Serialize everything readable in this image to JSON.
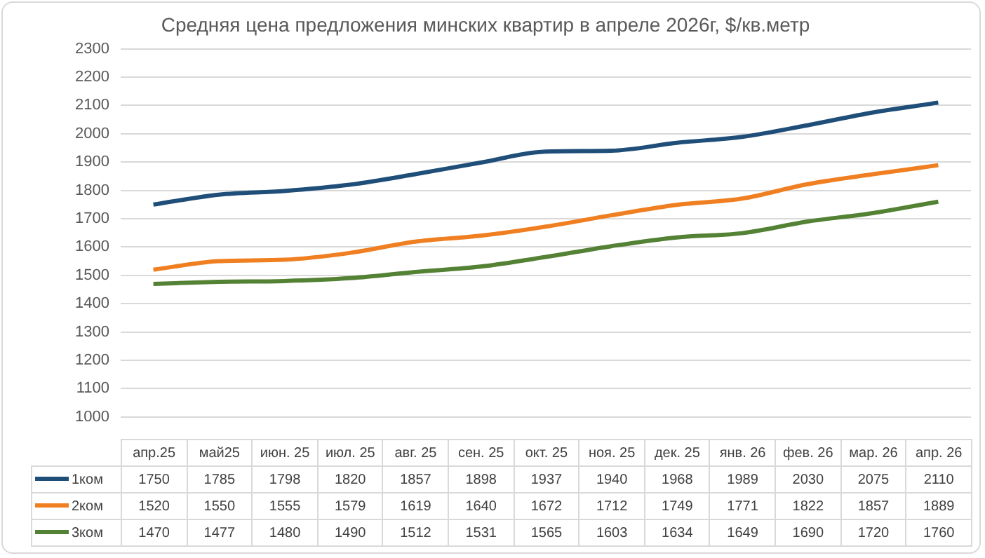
{
  "chart_data": {
    "type": "line",
    "title": "Средняя цена предложения минских квартир в апреле 2026г, $/кв.метр",
    "categories": [
      "апр.25",
      "май25",
      "июн. 25",
      "июл. 25",
      "авг. 25",
      "сен. 25",
      "окт. 25",
      "ноя. 25",
      "дек. 25",
      "янв. 26",
      "фев. 26",
      "мар. 26",
      "апр. 26"
    ],
    "series": [
      {
        "name": "1ком",
        "color": "#1f4e79",
        "values": [
          1750,
          1785,
          1798,
          1820,
          1857,
          1898,
          1937,
          1940,
          1968,
          1989,
          2030,
          2075,
          2110
        ]
      },
      {
        "name": "2ком",
        "color": "#f07f21",
        "values": [
          1520,
          1550,
          1555,
          1579,
          1619,
          1640,
          1672,
          1712,
          1749,
          1771,
          1822,
          1857,
          1889
        ]
      },
      {
        "name": "3ком",
        "color": "#548235",
        "values": [
          1470,
          1477,
          1480,
          1490,
          1512,
          1531,
          1565,
          1603,
          1634,
          1649,
          1690,
          1720,
          1760
        ]
      }
    ],
    "ylim": [
      1000,
      2300
    ],
    "yticks": [
      1000,
      1100,
      1200,
      1300,
      1400,
      1500,
      1600,
      1700,
      1800,
      1900,
      2000,
      2100,
      2200,
      2300
    ],
    "grid": "y",
    "legend": "bottom",
    "marker": "none",
    "line_style": "solid",
    "data_labels": true
  }
}
